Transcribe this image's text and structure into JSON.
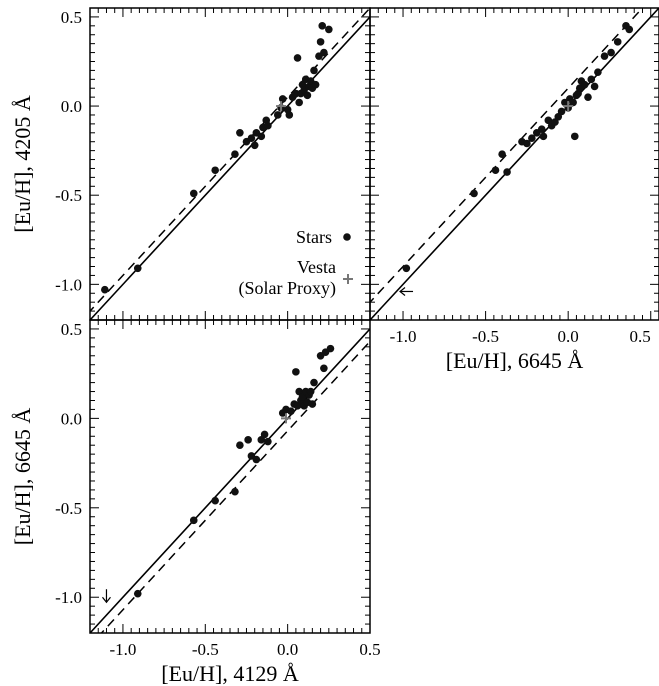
{
  "chart_data": [
    {
      "type": "scatter",
      "id": "top-left",
      "xlabel": "",
      "ylabel": "[Eu/H], 4205 Å",
      "xlim": [
        -1.2,
        0.5
      ],
      "ylim": [
        -1.2,
        0.55
      ],
      "xticks": [],
      "yticks": [
        "-1.0",
        "-0.5",
        "0.0",
        "0.5"
      ],
      "lines": {
        "one_to_one": true,
        "dashed_fit": {
          "slope": 1.0,
          "intercept": 0.05
        }
      },
      "series": [
        {
          "name": "Stars",
          "points": [
            [
              -1.11,
              -1.03
            ],
            [
              -0.91,
              -0.91
            ],
            [
              -0.57,
              -0.49
            ],
            [
              -0.44,
              -0.36
            ],
            [
              -0.32,
              -0.27
            ],
            [
              -0.29,
              -0.15
            ],
            [
              -0.25,
              -0.2
            ],
            [
              -0.22,
              -0.18
            ],
            [
              -0.2,
              -0.22
            ],
            [
              -0.19,
              -0.15
            ],
            [
              -0.16,
              -0.17
            ],
            [
              -0.15,
              -0.12
            ],
            [
              -0.13,
              -0.08
            ],
            [
              -0.12,
              -0.11
            ],
            [
              -0.06,
              -0.05
            ],
            [
              -0.04,
              -0.01
            ],
            [
              -0.03,
              0.04
            ],
            [
              0.0,
              -0.02
            ],
            [
              0.01,
              -0.05
            ],
            [
              0.03,
              0.05
            ],
            [
              0.05,
              0.07
            ],
            [
              0.06,
              0.27
            ],
            [
              0.07,
              0.02
            ],
            [
              0.08,
              0.07
            ],
            [
              0.09,
              0.12
            ],
            [
              0.1,
              0.09
            ],
            [
              0.11,
              0.15
            ],
            [
              0.12,
              0.06
            ],
            [
              0.13,
              0.11
            ],
            [
              0.14,
              0.14
            ],
            [
              0.15,
              0.1
            ],
            [
              0.16,
              0.2
            ],
            [
              0.17,
              0.12
            ],
            [
              0.19,
              0.28
            ],
            [
              0.2,
              0.36
            ],
            [
              0.21,
              0.45
            ],
            [
              0.22,
              0.3
            ],
            [
              0.25,
              0.43
            ]
          ]
        },
        {
          "name": "Vesta (Solar Proxy)",
          "points": [
            [
              -0.04,
              0.0
            ]
          ]
        }
      ],
      "legend": {
        "position": "bottom-right",
        "entries": [
          "Stars",
          "Vesta",
          "(Solar Proxy)"
        ]
      }
    },
    {
      "type": "scatter",
      "id": "top-right",
      "xlabel": "[Eu/H], 6645 Å",
      "ylabel": "",
      "xlim": [
        -1.2,
        0.55
      ],
      "ylim": [
        -1.2,
        0.55
      ],
      "xticks": [
        "-1.0",
        "-0.5",
        "0.0",
        "0.5"
      ],
      "yticks": [],
      "lines": {
        "one_to_one": true,
        "dashed_fit": {
          "slope": 1.0,
          "intercept": 0.1
        }
      },
      "series": [
        {
          "name": "Stars",
          "points": [
            [
              -0.98,
              -0.91
            ],
            [
              -0.57,
              -0.49
            ],
            [
              -0.44,
              -0.36
            ],
            [
              -0.4,
              -0.27
            ],
            [
              -0.37,
              -0.37
            ],
            [
              -0.28,
              -0.2
            ],
            [
              -0.25,
              -0.21
            ],
            [
              -0.22,
              -0.18
            ],
            [
              -0.19,
              -0.15
            ],
            [
              -0.16,
              -0.13
            ],
            [
              -0.15,
              -0.17
            ],
            [
              -0.12,
              -0.08
            ],
            [
              -0.1,
              -0.11
            ],
            [
              -0.08,
              -0.09
            ],
            [
              -0.06,
              -0.06
            ],
            [
              -0.04,
              -0.03
            ],
            [
              -0.02,
              0.02
            ],
            [
              0.0,
              -0.01
            ],
            [
              0.01,
              0.04
            ],
            [
              0.03,
              0.02
            ],
            [
              0.04,
              -0.17
            ],
            [
              0.05,
              0.06
            ],
            [
              0.06,
              0.07
            ],
            [
              0.07,
              0.1
            ],
            [
              0.08,
              0.14
            ],
            [
              0.1,
              0.12
            ],
            [
              0.12,
              0.05
            ],
            [
              0.14,
              0.15
            ],
            [
              0.16,
              0.11
            ],
            [
              0.18,
              0.19
            ],
            [
              0.22,
              0.28
            ],
            [
              0.26,
              0.3
            ],
            [
              0.3,
              0.36
            ],
            [
              0.35,
              0.45
            ],
            [
              0.37,
              0.43
            ]
          ]
        },
        {
          "name": "Vesta (Solar Proxy)",
          "points": [
            [
              0.0,
              0.0
            ]
          ]
        }
      ],
      "upper_limits": [
        {
          "x": -1.0,
          "y": -1.04,
          "direction": "left"
        }
      ]
    },
    {
      "type": "scatter",
      "id": "bottom-left",
      "xlabel": "[Eu/H], 4129 Å",
      "ylabel": "[Eu/H], 6645 Å",
      "xlim": [
        -1.2,
        0.5
      ],
      "ylim": [
        -1.2,
        0.55
      ],
      "xticks": [
        "-1.0",
        "-0.5",
        "0.0",
        "0.5"
      ],
      "yticks": [
        "-1.0",
        "-0.5",
        "0.0",
        "0.5"
      ],
      "lines": {
        "one_to_one": true,
        "dashed_fit": {
          "slope": 1.0,
          "intercept": -0.07
        }
      },
      "series": [
        {
          "name": "Stars",
          "points": [
            [
              -0.91,
              -0.98
            ],
            [
              -0.57,
              -0.57
            ],
            [
              -0.44,
              -0.46
            ],
            [
              -0.32,
              -0.41
            ],
            [
              -0.29,
              -0.15
            ],
            [
              -0.24,
              -0.12
            ],
            [
              -0.22,
              -0.21
            ],
            [
              -0.19,
              -0.23
            ],
            [
              -0.16,
              -0.12
            ],
            [
              -0.14,
              -0.09
            ],
            [
              -0.12,
              -0.13
            ],
            [
              -0.03,
              0.03
            ],
            [
              -0.01,
              0.05
            ],
            [
              0.02,
              0.04
            ],
            [
              0.04,
              0.08
            ],
            [
              0.05,
              0.26
            ],
            [
              0.06,
              0.07
            ],
            [
              0.07,
              0.15
            ],
            [
              0.08,
              0.1
            ],
            [
              0.09,
              0.12
            ],
            [
              0.1,
              0.07
            ],
            [
              0.11,
              0.15
            ],
            [
              0.12,
              0.09
            ],
            [
              0.13,
              0.13
            ],
            [
              0.14,
              0.15
            ],
            [
              0.15,
              0.08
            ],
            [
              0.16,
              0.2
            ],
            [
              0.2,
              0.35
            ],
            [
              0.22,
              0.28
            ],
            [
              0.23,
              0.37
            ],
            [
              0.26,
              0.39
            ]
          ]
        },
        {
          "name": "Vesta (Solar Proxy)",
          "points": [
            [
              -0.01,
              0.0
            ]
          ]
        }
      ],
      "upper_limits": [
        {
          "x": -1.1,
          "y": -1.0,
          "direction": "down"
        }
      ]
    }
  ]
}
